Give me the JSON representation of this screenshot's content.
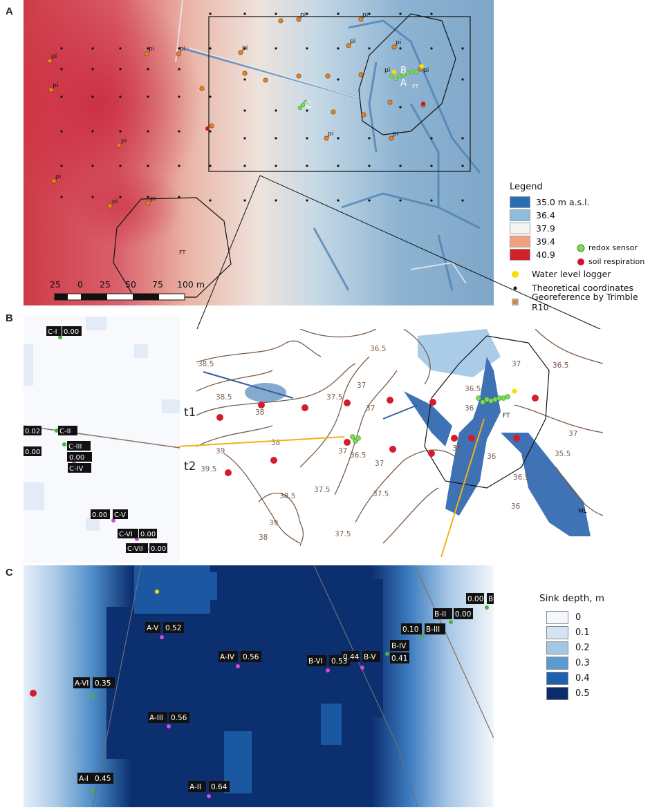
{
  "panels": {
    "a": "A",
    "b": "B",
    "c": "C"
  },
  "panel_a": {
    "pi": "pi",
    "ft": "FT",
    "site_letters": {
      "a": "A",
      "b": "B",
      "c": "C"
    },
    "scale": {
      "ticks": [
        "25",
        "0",
        "25",
        "50",
        "75",
        "100 m"
      ]
    },
    "legend": {
      "title": "Legend",
      "elevation": [
        {
          "label": "35.0 m a.s.l.",
          "color": "#2a6db5"
        },
        {
          "label": "36.4",
          "color": "#8fbde0"
        },
        {
          "label": "37.9",
          "color": "#f4f4f2"
        },
        {
          "label": "39.4",
          "color": "#f0a27e"
        },
        {
          "label": "40.9",
          "color": "#d21f2b"
        }
      ],
      "redox": "redox sensor",
      "soil_resp": "soil respiration",
      "water_logger": "Water level logger",
      "theoretical": "Theoretical coordinates",
      "georef": "Georeference by Trimble R10"
    }
  },
  "panel_b": {
    "transects": {
      "t1": "t1",
      "t2": "t2"
    },
    "ft": "FT",
    "ml": "ML",
    "contours": [
      "38.5",
      "38.5",
      "38",
      "39",
      "39.5",
      "38",
      "39",
      "38.5",
      "37.5",
      "37",
      "37.5",
      "37",
      "36.5",
      "36.5",
      "37",
      "36.5",
      "36",
      "36",
      "36",
      "36.5",
      "35.5",
      "37",
      "36.5",
      "37",
      "37",
      "37.5",
      "38",
      "36",
      "37.5"
    ],
    "left_labels": [
      {
        "name": "C-I",
        "value": "0.00"
      },
      {
        "name": "C-II",
        "value": "0.02"
      },
      {
        "name": "C-III",
        "value": "0.00"
      },
      {
        "name": "C-IV",
        "value": "0.00"
      },
      {
        "name": "C-V",
        "value": "0.00"
      },
      {
        "name": "C-VI",
        "value": "0.00"
      },
      {
        "name": "C-VII",
        "value": "0.00"
      }
    ]
  },
  "panel_c": {
    "labels": [
      {
        "name": "A-V",
        "value": "0.52"
      },
      {
        "name": "A-IV",
        "value": "0.56"
      },
      {
        "name": "A-VI",
        "value": "0.35"
      },
      {
        "name": "A-III",
        "value": "0.56"
      },
      {
        "name": "A-I",
        "value": "0.45"
      },
      {
        "name": "A-II",
        "value": "0.64"
      },
      {
        "name": "B-I",
        "value": "0.00"
      },
      {
        "name": "B-II",
        "value": "0.00"
      },
      {
        "name": "B-III",
        "value": "0.10"
      },
      {
        "name": "B-IV",
        "value": "0.41"
      },
      {
        "name": "B-V",
        "value": "0.44"
      },
      {
        "name": "B-VI",
        "value": "0.53"
      }
    ],
    "legend": {
      "title": "Sink depth, m",
      "items": [
        {
          "label": "0",
          "color": "#f4f7fb"
        },
        {
          "label": "0.1",
          "color": "#d3e3f2"
        },
        {
          "label": "0.2",
          "color": "#a4c7e4"
        },
        {
          "label": "0.3",
          "color": "#5c9bcf"
        },
        {
          "label": "0.4",
          "color": "#1f61ad"
        },
        {
          "label": "0.5",
          "color": "#0b2c6b"
        }
      ]
    }
  }
}
